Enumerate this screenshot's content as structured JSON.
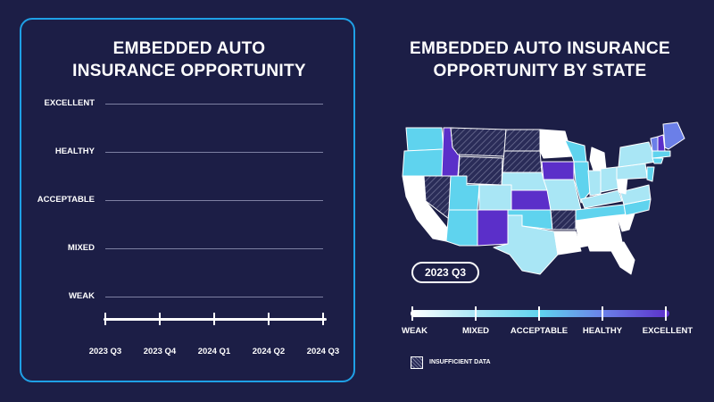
{
  "left_chart": {
    "title_line1": "EMBEDDED AUTO",
    "title_line2": "INSURANCE OPPORTUNITY"
  },
  "right_chart": {
    "title_line1": "EMBEDDED AUTO INSURANCE",
    "title_line2": "OPPORTUNITY BY STATE",
    "current_quarter": "2023 Q3"
  },
  "legend": {
    "levels": [
      "WEAK",
      "MIXED",
      "ACCEPTABLE",
      "HEALTHY",
      "EXCELLENT"
    ],
    "insufficient_label": "INSUFFICIENT DATA"
  },
  "colors": {
    "background": "#1c1e46",
    "panel_border": "#1fa0e6",
    "weak": "#ffffff",
    "mixed": "#a9e6f5",
    "acceptable": "#5fd3ee",
    "healthy": "#6b7fe8",
    "excellent": "#5b2fc9",
    "hatched": "#2a2c58"
  },
  "chart_data": [
    {
      "type": "line",
      "title": "EMBEDDED AUTO INSURANCE OPPORTUNITY",
      "y_categories": [
        "WEAK",
        "MIXED",
        "ACCEPTABLE",
        "HEALTHY",
        "EXCELLENT"
      ],
      "x": [
        "2023 Q3",
        "2023 Q4",
        "2024 Q1",
        "2024 Q2",
        "2024 Q3"
      ],
      "series": []
    },
    {
      "type": "heatmap",
      "title": "EMBEDDED AUTO INSURANCE OPPORTUNITY BY STATE",
      "legend_categories": [
        "WEAK",
        "MIXED",
        "ACCEPTABLE",
        "HEALTHY",
        "EXCELLENT",
        "INSUFFICIENT DATA"
      ],
      "period": "2023 Q3"
    }
  ]
}
